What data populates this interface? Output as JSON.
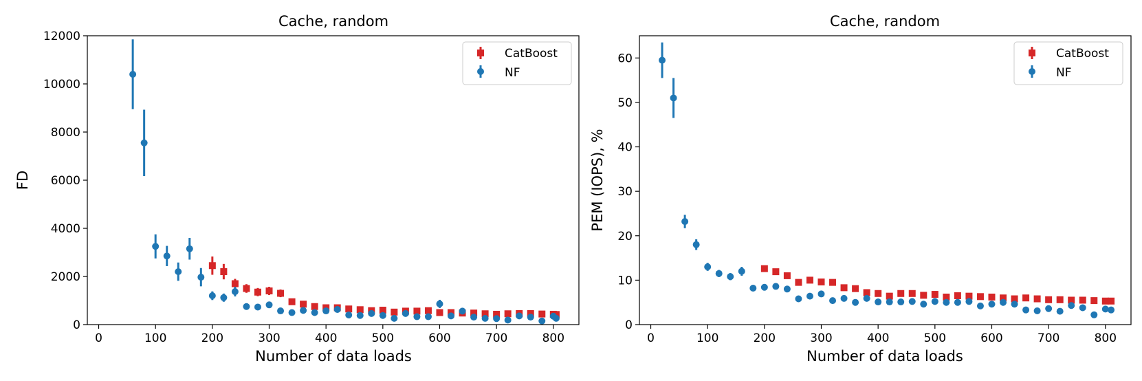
{
  "colors": {
    "catboost": "#d62728",
    "nf": "#1f77b4"
  },
  "chart_data": [
    {
      "type": "scatter",
      "title": "Cache, random",
      "xlabel": "Number of data loads",
      "ylabel": "FD",
      "xlim": [
        -20,
        845
      ],
      "ylim": [
        0,
        12000
      ],
      "xticks": [
        0,
        100,
        200,
        300,
        400,
        500,
        600,
        700,
        800
      ],
      "yticks": [
        0,
        2000,
        4000,
        6000,
        8000,
        10000,
        12000
      ],
      "legend": "top-right",
      "series": [
        {
          "name": "CatBoost",
          "marker": "square",
          "x": [
            200,
            220,
            240,
            260,
            280,
            300,
            320,
            340,
            360,
            380,
            400,
            420,
            440,
            460,
            480,
            500,
            520,
            540,
            560,
            580,
            600,
            620,
            640,
            660,
            680,
            700,
            720,
            740,
            760,
            780,
            800,
            805
          ],
          "y": [
            2450,
            2200,
            1700,
            1500,
            1350,
            1400,
            1300,
            950,
            850,
            750,
            700,
            700,
            650,
            620,
            580,
            600,
            520,
            560,
            560,
            580,
            500,
            500,
            480,
            480,
            450,
            430,
            450,
            460,
            460,
            440,
            430,
            420
          ],
          "err": [
            380,
            320,
            200,
            180,
            170,
            170,
            160,
            80,
            70,
            60,
            60,
            60,
            60,
            50,
            50,
            50,
            50,
            50,
            50,
            50,
            50,
            50,
            50,
            50,
            50,
            50,
            50,
            50,
            50,
            50,
            50,
            50
          ]
        },
        {
          "name": "NF",
          "marker": "circle",
          "x": [
            60,
            80,
            100,
            120,
            140,
            160,
            180,
            200,
            220,
            240,
            260,
            280,
            300,
            320,
            340,
            360,
            380,
            400,
            420,
            440,
            460,
            480,
            500,
            520,
            540,
            560,
            580,
            600,
            620,
            640,
            660,
            680,
            700,
            720,
            740,
            760,
            780,
            800,
            805
          ],
          "y": [
            10400,
            7550,
            3250,
            2850,
            2200,
            3150,
            1970,
            1200,
            1120,
            1370,
            750,
            730,
            820,
            570,
            500,
            590,
            500,
            570,
            630,
            400,
            380,
            460,
            380,
            260,
            460,
            330,
            330,
            860,
            360,
            560,
            310,
            260,
            250,
            190,
            360,
            310,
            150,
            350,
            260
          ],
          "err": [
            1450,
            1380,
            500,
            420,
            380,
            450,
            380,
            180,
            170,
            200,
            80,
            80,
            90,
            70,
            60,
            70,
            60,
            60,
            70,
            50,
            50,
            50,
            50,
            50,
            50,
            50,
            50,
            170,
            50,
            60,
            50,
            50,
            50,
            50,
            50,
            50,
            50,
            50,
            50
          ]
        }
      ]
    },
    {
      "type": "scatter",
      "title": "Cache, random",
      "xlabel": "Number of data loads",
      "ylabel": "PEM (IOPS), %",
      "xlim": [
        -20,
        845
      ],
      "ylim": [
        0,
        65
      ],
      "xticks": [
        0,
        100,
        200,
        300,
        400,
        500,
        600,
        700,
        800
      ],
      "yticks": [
        0,
        10,
        20,
        30,
        40,
        50,
        60
      ],
      "legend": "top-right",
      "series": [
        {
          "name": "CatBoost",
          "marker": "square",
          "x": [
            200,
            220,
            240,
            260,
            280,
            300,
            320,
            340,
            360,
            380,
            400,
            420,
            440,
            460,
            480,
            500,
            520,
            540,
            560,
            580,
            600,
            620,
            640,
            660,
            680,
            700,
            720,
            740,
            760,
            780,
            800,
            810
          ],
          "y": [
            12.6,
            11.9,
            11.0,
            9.5,
            10.0,
            9.6,
            9.5,
            8.3,
            8.1,
            7.2,
            7.0,
            6.4,
            7.0,
            7.0,
            6.6,
            6.8,
            6.2,
            6.5,
            6.4,
            6.3,
            6.2,
            6.0,
            5.8,
            6.0,
            5.8,
            5.6,
            5.6,
            5.5,
            5.5,
            5.4,
            5.3,
            5.3
          ],
          "err": [
            0.6,
            0.6,
            0.6,
            0.5,
            0.5,
            0.5,
            0.5,
            0.4,
            0.4,
            0.4,
            0.4,
            0.4,
            0.4,
            0.4,
            0.4,
            0.4,
            0.4,
            0.4,
            0.4,
            0.4,
            0.4,
            0.4,
            0.4,
            0.4,
            0.4,
            0.4,
            0.4,
            0.4,
            0.4,
            0.4,
            0.4,
            0.4
          ]
        },
        {
          "name": "NF",
          "marker": "circle",
          "x": [
            20,
            40,
            60,
            80,
            100,
            120,
            140,
            160,
            180,
            200,
            220,
            240,
            260,
            280,
            300,
            320,
            340,
            360,
            380,
            400,
            420,
            440,
            460,
            480,
            500,
            520,
            540,
            560,
            580,
            600,
            620,
            640,
            660,
            680,
            700,
            720,
            740,
            760,
            780,
            800,
            810
          ],
          "y": [
            59.5,
            51.0,
            23.2,
            18.0,
            13.0,
            11.5,
            10.8,
            12.0,
            8.2,
            8.4,
            8.6,
            8.0,
            5.8,
            6.4,
            6.9,
            5.4,
            5.9,
            5.0,
            5.9,
            5.1,
            5.1,
            5.1,
            5.2,
            4.6,
            5.2,
            5.0,
            5.0,
            5.2,
            4.2,
            4.6,
            5.0,
            4.6,
            3.3,
            3.1,
            3.6,
            3.0,
            4.3,
            3.8,
            2.2,
            3.5,
            3.3
          ],
          "err": [
            4.0,
            4.5,
            1.5,
            1.2,
            0.9,
            0.8,
            0.8,
            1.0,
            0.5,
            0.5,
            0.5,
            0.5,
            0.4,
            0.4,
            0.4,
            0.4,
            0.4,
            0.4,
            0.4,
            0.4,
            0.4,
            0.4,
            0.4,
            0.4,
            0.4,
            0.4,
            0.4,
            0.4,
            0.4,
            0.4,
            0.4,
            0.4,
            0.4,
            0.4,
            0.4,
            0.4,
            0.4,
            0.4,
            0.4,
            0.4,
            0.4
          ]
        }
      ]
    }
  ]
}
